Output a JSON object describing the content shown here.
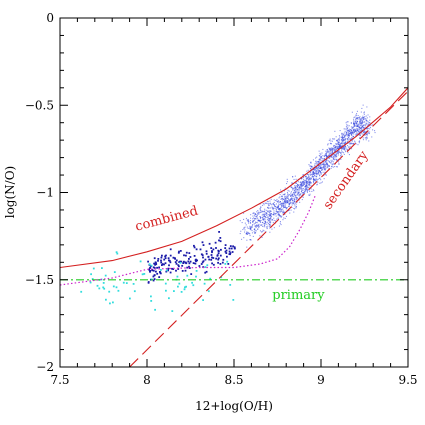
{
  "chart_data": {
    "type": "scatter",
    "xlabel": "12+log(O/H)",
    "ylabel": "log(N/O)",
    "xlim": [
      7.5,
      9.5
    ],
    "ylim": [
      -2,
      0
    ],
    "x_ticks": [
      {
        "value": 7.5,
        "label": "7.5"
      },
      {
        "value": 8.0,
        "label": "8"
      },
      {
        "value": 8.5,
        "label": "8.5"
      },
      {
        "value": 9.0,
        "label": "9"
      },
      {
        "value": 9.5,
        "label": "9.5"
      }
    ],
    "y_ticks": [
      {
        "value": -2.0,
        "label": "−2"
      },
      {
        "value": -1.5,
        "label": "−1.5"
      },
      {
        "value": -1.0,
        "label": "−1"
      },
      {
        "value": -0.5,
        "label": "−0.5"
      },
      {
        "value": 0.0,
        "label": "0"
      }
    ],
    "grid": false,
    "colors": {
      "combined": "#d42020",
      "secondary": "#d42020",
      "primary": "#22cc22",
      "dotted": "#cc22cc",
      "cloud": "#3344dd",
      "cluster": "#1a1aa8",
      "cyan": "#33dddd"
    },
    "lines": [
      {
        "name": "combined",
        "label": "combined",
        "style": "solid",
        "label_at": [
          7.94,
          -1.22
        ],
        "x": [
          7.5,
          7.8,
          8.0,
          8.2,
          8.4,
          8.6,
          8.8,
          9.0,
          9.2,
          9.4,
          9.5
        ],
        "y": [
          -1.43,
          -1.39,
          -1.34,
          -1.28,
          -1.19,
          -1.09,
          -0.98,
          -0.83,
          -0.68,
          -0.51,
          -0.4
        ]
      },
      {
        "name": "secondary",
        "label": "secondary",
        "style": "dashed",
        "label_at": [
          9.05,
          -1.1
        ],
        "x": [
          7.9,
          9.5
        ],
        "y": [
          -2.0,
          -0.42
        ]
      },
      {
        "name": "primary",
        "label": "primary",
        "style": "dashdot",
        "label_at": [
          8.72,
          -1.61
        ],
        "x": [
          7.5,
          9.5
        ],
        "y": [
          -1.5,
          -1.5
        ]
      },
      {
        "name": "dotted",
        "style": "dotted",
        "x": [
          7.5,
          7.8,
          8.0,
          8.3,
          8.5,
          8.65,
          8.75,
          8.82,
          8.88,
          8.93,
          8.97
        ],
        "y": [
          -1.53,
          -1.49,
          -1.44,
          -1.43,
          -1.43,
          -1.41,
          -1.38,
          -1.31,
          -1.21,
          -1.11,
          -1.01
        ]
      }
    ],
    "scatter": {
      "cloud": {
        "x_center": [
          8.55,
          8.6,
          8.7,
          8.8,
          8.9,
          9.0,
          9.1,
          9.2
        ],
        "y_center": [
          -1.22,
          -1.18,
          -1.12,
          -1.05,
          -0.95,
          -0.84,
          -0.74,
          -0.62
        ],
        "count": 1800
      },
      "cluster": {
        "x_range": [
          8.0,
          8.5
        ],
        "y_center": -1.38,
        "count": 180
      },
      "cyan": {
        "x_range": [
          7.6,
          8.5
        ],
        "y_center": -1.5,
        "count": 70
      }
    }
  }
}
